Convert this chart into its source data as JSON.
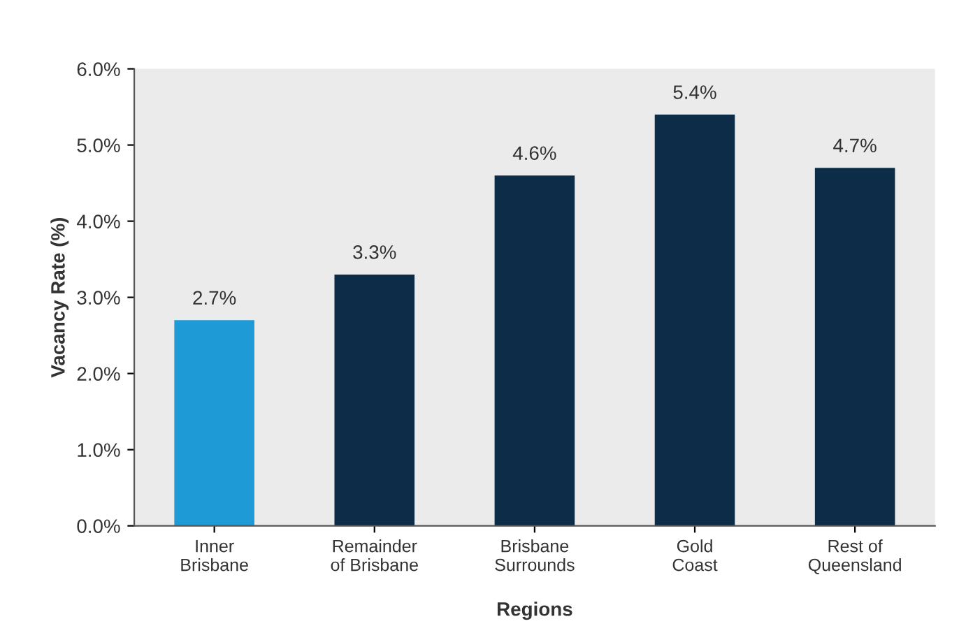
{
  "chart_data": {
    "type": "bar",
    "xlabel": "Regions",
    "ylabel": "Vacancy Rate (%)",
    "categories": [
      "Inner\nBrisbane",
      "Remainder\nof Brisbane",
      "Brisbane\nSurrounds",
      "Gold\nCoast",
      "Rest of\nQueensland"
    ],
    "values": [
      2.7,
      3.3,
      4.6,
      5.4,
      4.7
    ],
    "colors": [
      "#1e9ad6",
      "#0d2c47",
      "#0d2c47",
      "#0d2c47",
      "#0d2c47"
    ],
    "value_labels": [
      "2.7%",
      "3.3%",
      "4.6%",
      "5.4%",
      "4.7%"
    ],
    "ylim": [
      0,
      6
    ],
    "yticks": [
      {
        "value": 0,
        "label": "0.0%"
      },
      {
        "value": 1,
        "label": "1.0%"
      },
      {
        "value": 2,
        "label": "2.0%"
      },
      {
        "value": 3,
        "label": "3.0%"
      },
      {
        "value": 4,
        "label": "4.0%"
      },
      {
        "value": 5,
        "label": "5.0%"
      },
      {
        "value": 6,
        "label": "6.0%"
      }
    ],
    "grid": false
  }
}
